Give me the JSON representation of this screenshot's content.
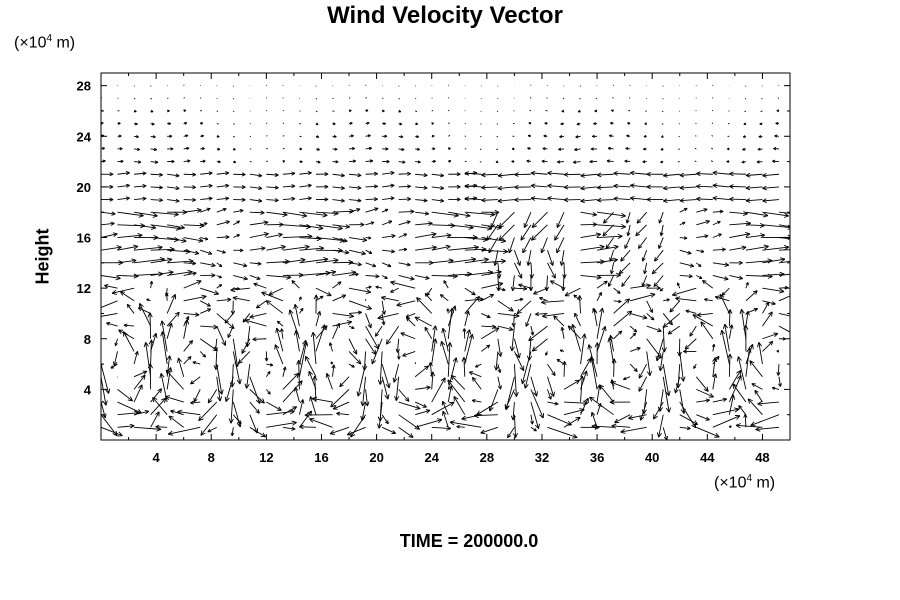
{
  "chart_data": {
    "type": "vector",
    "title": "Wind Velocity Vector",
    "ylabel": "Height",
    "xunit": {
      "base": "(×10",
      "exp": "4",
      "tail": " m)"
    },
    "yunit": {
      "base": "(×10",
      "exp": "4",
      "tail": " m)"
    },
    "xlim": [
      0,
      50
    ],
    "ylim": [
      0,
      29
    ],
    "xticks": [
      4,
      8,
      12,
      16,
      20,
      24,
      28,
      32,
      36,
      40,
      44,
      48
    ],
    "yticks": [
      4,
      8,
      12,
      16,
      20,
      24,
      28
    ],
    "xtick_labels": [
      "4",
      "8",
      "12",
      "16",
      "20",
      "24",
      "28",
      "32",
      "36",
      "40",
      "44",
      "48"
    ],
    "ytick_labels": [
      "4",
      "8",
      "12",
      "16",
      "20",
      "24",
      "28"
    ],
    "grid_x": {
      "start": 0.0,
      "step": 1.2,
      "count": 42
    },
    "grid_y": {
      "start": 1.0,
      "step": 1.0,
      "count": 28
    },
    "annotation": "TIME = 200000.0"
  }
}
